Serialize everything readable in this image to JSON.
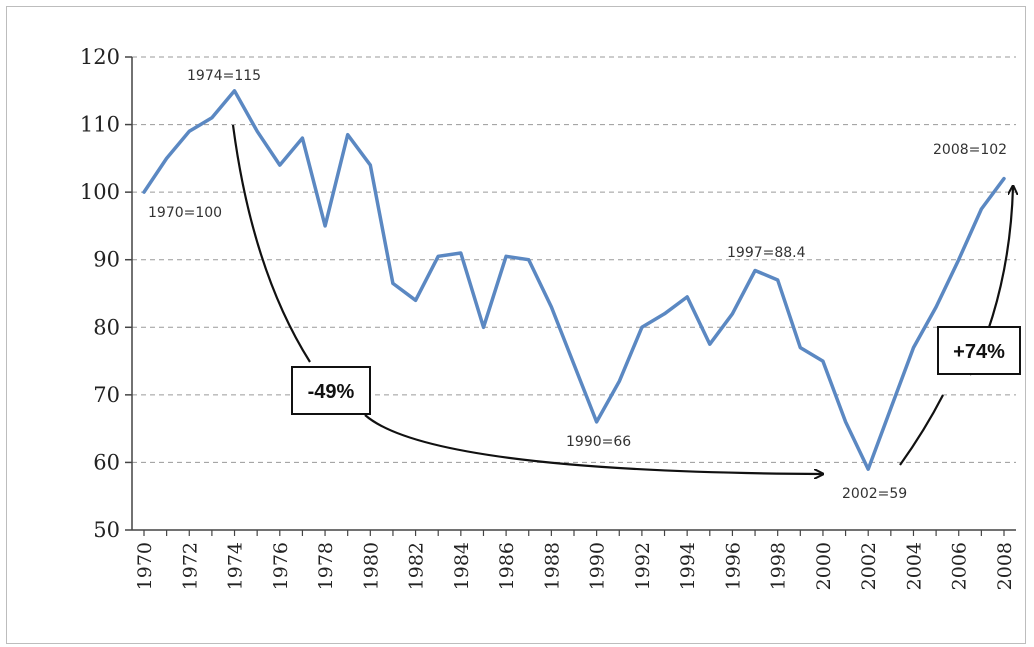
{
  "chart_data": {
    "type": "line",
    "title": "",
    "xlabel": "",
    "ylabel": "",
    "ylim": [
      50,
      120
    ],
    "xlim": [
      1970,
      2008
    ],
    "grid": "horizontal dashed",
    "yticks": [
      "50",
      "60",
      "70",
      "80",
      "90",
      "100",
      "110",
      "120"
    ],
    "xticks": [
      "1970",
      "1972",
      "1974",
      "1976",
      "1978",
      "1980",
      "1982",
      "1984",
      "1986",
      "1988",
      "1990",
      "1992",
      "1994",
      "1996",
      "1998",
      "2000",
      "2002",
      "2004",
      "2006",
      "2008"
    ],
    "series": [
      {
        "color": "#5b88c2",
        "x": [
          1970,
          1971,
          1972,
          1973,
          1974,
          1975,
          1976,
          1977,
          1978,
          1979,
          1980,
          1981,
          1982,
          1983,
          1984,
          1985,
          1986,
          1987,
          1988,
          1989,
          1990,
          1991,
          1992,
          1993,
          1994,
          1995,
          1996,
          1997,
          1998,
          1999,
          2000,
          2001,
          2002,
          2003,
          2004,
          2005,
          2006,
          2007,
          2008
        ],
        "y": [
          100,
          105,
          109,
          111,
          115,
          109,
          104,
          108,
          95,
          108.5,
          104,
          86.5,
          84,
          90.5,
          91,
          80,
          90.5,
          90,
          83,
          74.5,
          66,
          72,
          80,
          82,
          84.5,
          77.5,
          82,
          88.4,
          87,
          77,
          75,
          66,
          59,
          68,
          77,
          83,
          90,
          97.5,
          102
        ]
      }
    ],
    "annotations": [
      {
        "id": "a1970",
        "text": "1970=100"
      },
      {
        "id": "a1974",
        "text": "1974=115"
      },
      {
        "id": "a1990",
        "text": "1990=66"
      },
      {
        "id": "a1997",
        "text": "1997=88.4"
      },
      {
        "id": "a2002",
        "text": "2002=59"
      },
      {
        "id": "a2008",
        "text": "2008=102"
      }
    ],
    "boxed_labels": [
      {
        "id": "drop",
        "text": "-49%"
      },
      {
        "id": "rise",
        "text": "+74%"
      }
    ]
  }
}
